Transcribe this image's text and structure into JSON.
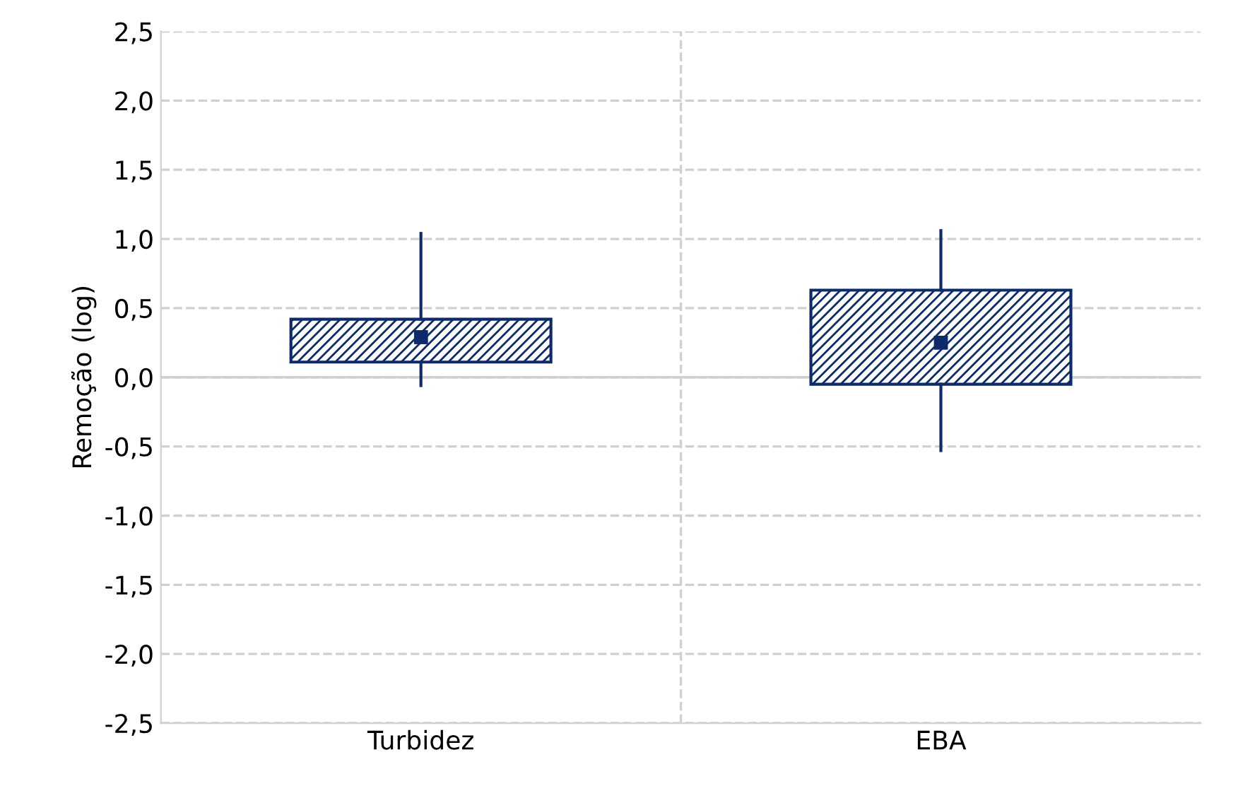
{
  "chart_data": {
    "type": "box",
    "ylabel": "Remoção (log)",
    "categories": [
      "Turbidez",
      "EBA"
    ],
    "boxes": [
      {
        "low": -0.06,
        "q1": 0.11,
        "median": 0.29,
        "q3": 0.42,
        "high": 1.04
      },
      {
        "low": -0.53,
        "q1": -0.05,
        "median": 0.25,
        "q3": 0.63,
        "high": 1.06
      }
    ],
    "color": "#0d2a6b",
    "ylim": [
      -2.5,
      2.5
    ],
    "yticks": [
      {
        "value": -2.5,
        "label": "-2,5"
      },
      {
        "value": -2.0,
        "label": "-2,0"
      },
      {
        "value": -1.5,
        "label": "-1,5"
      },
      {
        "value": -1.0,
        "label": "-1,0"
      },
      {
        "value": -0.5,
        "label": "-0,5"
      },
      {
        "value": 0,
        "label": "0,0"
      },
      {
        "value": 0.5,
        "label": "0,5"
      },
      {
        "value": 1.0,
        "label": "1,0"
      },
      {
        "value": 1.5,
        "label": "1,5"
      },
      {
        "value": 2.0,
        "label": "2,0"
      },
      {
        "value": 2.5,
        "label": "2,5"
      }
    ],
    "grid": true,
    "ref_lines": [
      {
        "axis": "y",
        "value": 0,
        "color": "#d0d0d0",
        "line_style": "solid"
      }
    ]
  }
}
